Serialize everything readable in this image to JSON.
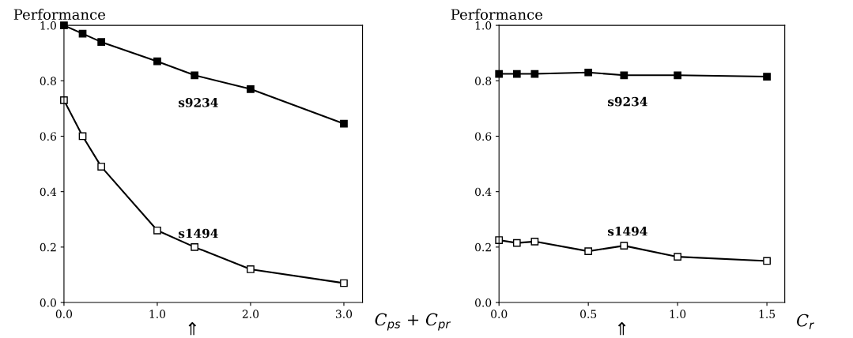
{
  "chart_data": [
    {
      "type": "line",
      "ylabel": "Performance",
      "xlabel": "C$_{ps}$ + C$_{pr}$",
      "x": [
        0,
        0.2,
        0.4,
        1.0,
        1.4,
        2.0,
        3.0
      ],
      "series": [
        {
          "name": "s9234",
          "color": "#000000",
          "values": [
            1.0,
            0.97,
            0.94,
            0.87,
            0.82,
            0.77,
            0.645
          ]
        },
        {
          "name": "s1494",
          "color": "#000000",
          "values": [
            0.73,
            0.6,
            0.49,
            0.26,
            0.2,
            0.12,
            0.07
          ]
        }
      ],
      "xlim": [
        0,
        3.2
      ],
      "ylim": [
        0,
        1.0
      ],
      "xticks": [
        {
          "value": 0,
          "label": "0.0"
        },
        {
          "value": 1,
          "label": "1.0"
        },
        {
          "value": 2,
          "label": "2.0"
        },
        {
          "value": 3,
          "label": "3.0"
        }
      ],
      "yticks": [
        {
          "value": 0,
          "label": "0.0"
        },
        {
          "value": 0.2,
          "label": "0.2"
        },
        {
          "value": 0.4,
          "label": "0.4"
        },
        {
          "value": 0.6,
          "label": "0.6"
        },
        {
          "value": 0.8,
          "label": "0.8"
        },
        {
          "value": 1.0,
          "label": "1.0"
        }
      ],
      "annotations": [
        "⇑"
      ],
      "marker": "square",
      "line_style": "solid",
      "grid": false,
      "legend": false
    },
    {
      "type": "line",
      "ylabel": "Performance",
      "xlabel": "C$_{r}$",
      "x": [
        0,
        0.1,
        0.2,
        0.5,
        0.7,
        1.0,
        1.5
      ],
      "series": [
        {
          "name": "s9234",
          "color": "#000000",
          "values": [
            0.825,
            0.825,
            0.825,
            0.83,
            0.82,
            0.82,
            0.815
          ]
        },
        {
          "name": "s1494",
          "color": "#000000",
          "values": [
            0.225,
            0.215,
            0.22,
            0.185,
            0.205,
            0.165,
            0.15
          ]
        }
      ],
      "xlim": [
        0,
        1.6
      ],
      "ylim": [
        0,
        1.0
      ],
      "xticks": [
        {
          "value": 0,
          "label": "0.0"
        },
        {
          "value": 0.5,
          "label": "0.5"
        },
        {
          "value": 1.0,
          "label": "1.0"
        },
        {
          "value": 1.5,
          "label": "1.5"
        }
      ],
      "yticks": [
        {
          "value": 0,
          "label": "0.0"
        },
        {
          "value": 0.2,
          "label": "0.2"
        },
        {
          "value": 0.4,
          "label": "0.4"
        },
        {
          "value": 0.6,
          "label": "0.6"
        },
        {
          "value": 0.8,
          "label": "0.8"
        },
        {
          "value": 1.0,
          "label": "1.0"
        }
      ],
      "annotations": [
        "⇑"
      ],
      "marker": "square",
      "line_style": "solid",
      "grid": false,
      "legend": false
    }
  ]
}
